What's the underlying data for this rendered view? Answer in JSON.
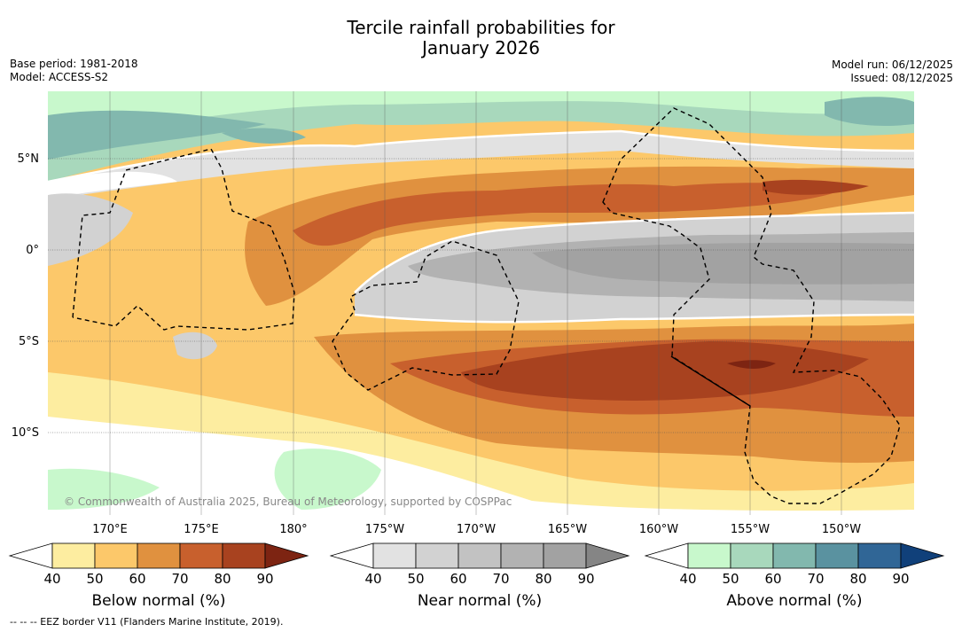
{
  "title_line1": "Tercile rainfall probabilities for",
  "title_line2": "January 2026",
  "base_period": "Base period: 1981-2018",
  "model": "Model: ACCESS-S2",
  "model_run": "Model run: 06/12/2025",
  "issued": "Issued: 08/12/2025",
  "copyright": "© Commonwealth of Australia 2025, Bureau of Meteorology, supported by COSPPac",
  "lat_labels": [
    "5°N",
    "0°",
    "5°S",
    "10°S"
  ],
  "lon_labels": [
    "170°E",
    "175°E",
    "180°",
    "175°W",
    "170°W",
    "165°W",
    "160°W",
    "155°W",
    "150°W"
  ],
  "colorbars": [
    {
      "title": "Below normal (%)",
      "ticks": [
        "40",
        "50",
        "60",
        "70",
        "80",
        "90"
      ],
      "colors": [
        "#ffffff",
        "#fdeda0",
        "#fcc86a",
        "#e0913f",
        "#c8602d",
        "#a8421f",
        "#7d2412"
      ]
    },
    {
      "title": "Near normal (%)",
      "ticks": [
        "40",
        "50",
        "60",
        "70",
        "80",
        "90"
      ],
      "colors": [
        "#ffffff",
        "#e2e2e2",
        "#d2d2d2",
        "#c2c2c2",
        "#b2b2b2",
        "#a2a2a2",
        "#858585"
      ]
    },
    {
      "title": "Above normal (%)",
      "ticks": [
        "40",
        "50",
        "60",
        "70",
        "80",
        "90"
      ],
      "colors": [
        "#ffffff",
        "#c8f8cc",
        "#a8d8bc",
        "#82b8ae",
        "#5a92a0",
        "#306696",
        "#10407a"
      ]
    }
  ],
  "footnote": "--  --  -- EEZ border V11 (Flanders Marine Institute, 2019)."
}
